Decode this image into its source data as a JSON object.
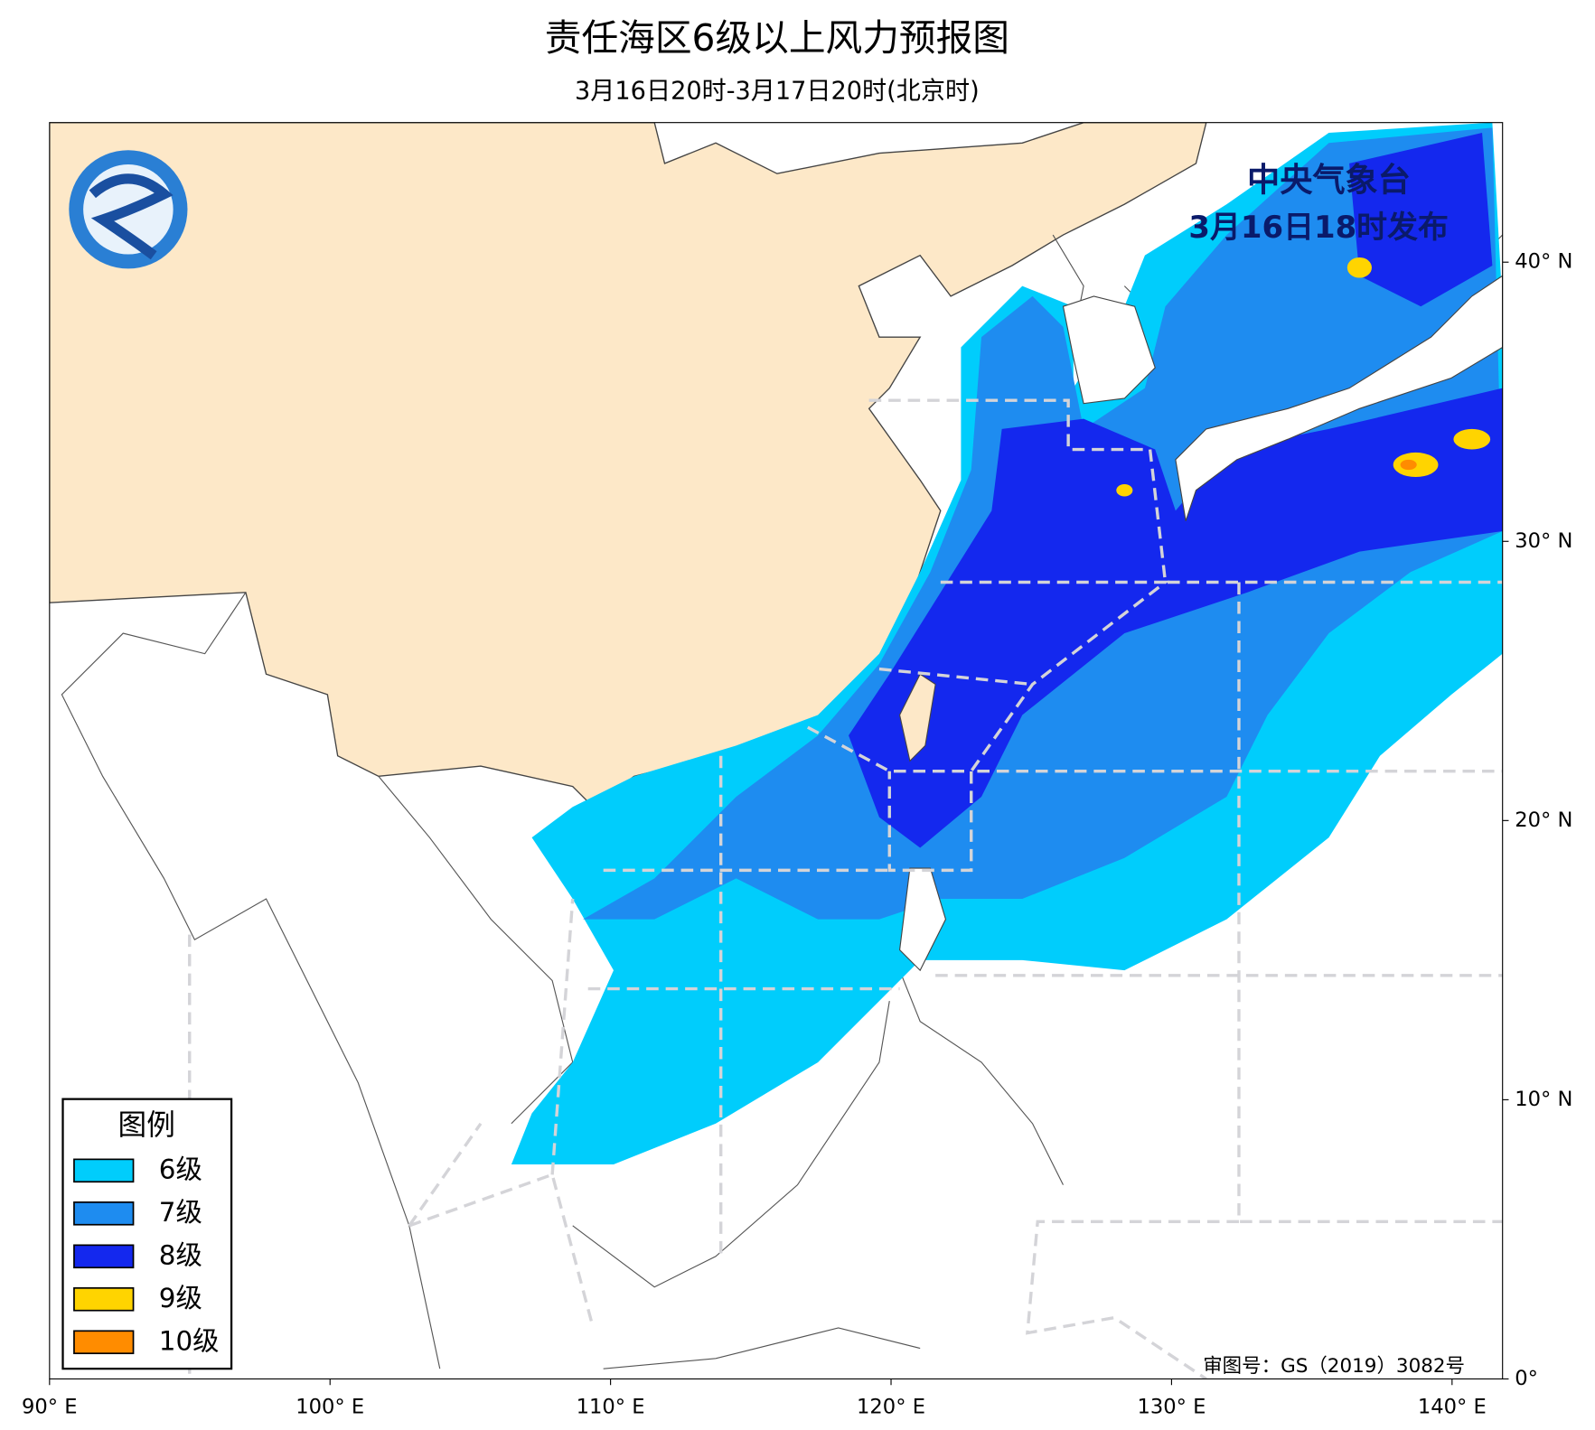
{
  "header": {
    "title": "责任海区6级以上风力预报图",
    "subtitle": "3月16日20时-3月17日20时(北京时)"
  },
  "publisher": {
    "name": "中央气象台",
    "issued": "3月16日18时发布"
  },
  "legend": {
    "title": "图例",
    "items": [
      {
        "label": "6级",
        "color": "#00cdfc"
      },
      {
        "label": "7级",
        "color": "#1e8cf0"
      },
      {
        "label": "8级",
        "color": "#1428ee"
      },
      {
        "label": "9级",
        "color": "#ffd400"
      },
      {
        "label": "10级",
        "color": "#ff8c00"
      }
    ]
  },
  "map": {
    "xlim": [
      90,
      141.8
    ],
    "ylim": [
      0,
      45
    ],
    "xticks": [
      {
        "value": 90,
        "label": "90° E"
      },
      {
        "value": 100,
        "label": "100° E"
      },
      {
        "value": 110,
        "label": "110° E"
      },
      {
        "value": 120,
        "label": "120° E"
      },
      {
        "value": 130,
        "label": "130° E"
      },
      {
        "value": 140,
        "label": "140° E"
      }
    ],
    "yticks": [
      {
        "value": 0,
        "label": "0°"
      },
      {
        "value": 10,
        "label": "10° N"
      },
      {
        "value": 20,
        "label": "20° N"
      },
      {
        "value": 30,
        "label": "30° N"
      },
      {
        "value": 40,
        "label": "40° N"
      }
    ]
  },
  "approval": "审图号：GS（2019）3082号"
}
